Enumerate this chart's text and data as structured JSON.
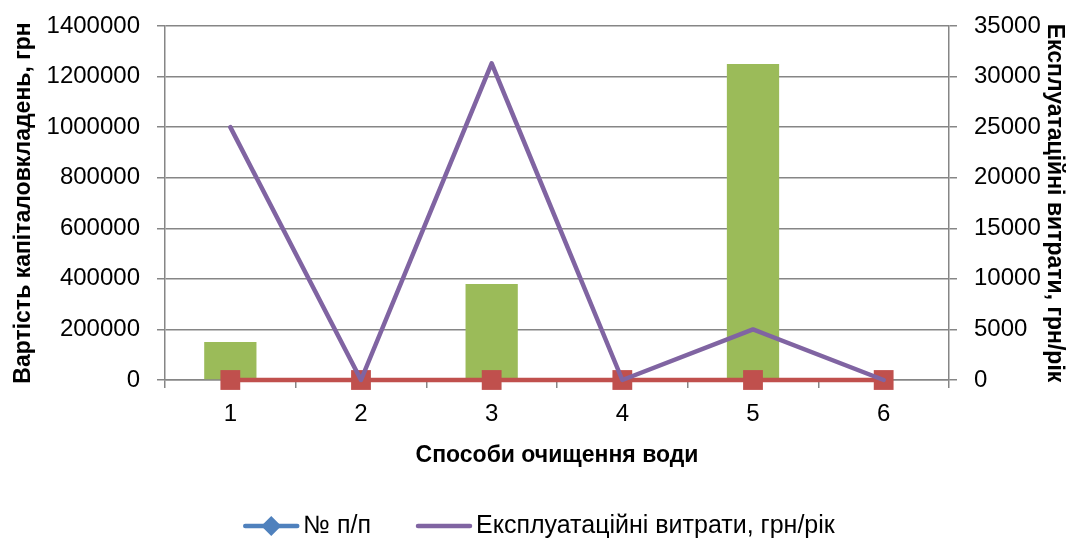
{
  "chart_data": {
    "type": "bar",
    "xlabel": "Способи очищення води",
    "ylabel": "Вартість капіталовкладень, грн",
    "y2label": "Експлуатаційні витрати, грн/рік",
    "categories": [
      "1",
      "2",
      "3",
      "4",
      "5",
      "6"
    ],
    "series": [
      {
        "color": "#9bbb59",
        "values": [
          150000,
          0,
          380000,
          0,
          1250000,
          0
        ]
      },
      {
        "name": "№ п/п",
        "type": "line",
        "color": "#4f81bd",
        "marker": "diamond",
        "values": [
          null,
          null,
          null,
          null,
          null,
          null
        ]
      },
      {
        "type": "line",
        "color": "#c0504d",
        "marker": "square",
        "values": [
          0,
          0,
          0,
          0,
          0,
          0
        ]
      },
      {
        "name": "Експлуатаційні витрати, грн/рік",
        "type": "line",
        "axis": "y2",
        "color": "#8064a2",
        "marker": "none",
        "values": [
          25000,
          0,
          31300,
          0,
          5000,
          0
        ]
      }
    ],
    "ylim": [
      0,
      1400000
    ],
    "yticks": [
      0,
      200000,
      400000,
      600000,
      800000,
      1000000,
      1200000,
      1400000
    ],
    "y2lim": [
      0,
      35000
    ],
    "y2ticks": [
      0,
      5000,
      10000,
      15000,
      20000,
      25000,
      30000,
      35000
    ],
    "grid": "y",
    "legend": "bottom"
  }
}
